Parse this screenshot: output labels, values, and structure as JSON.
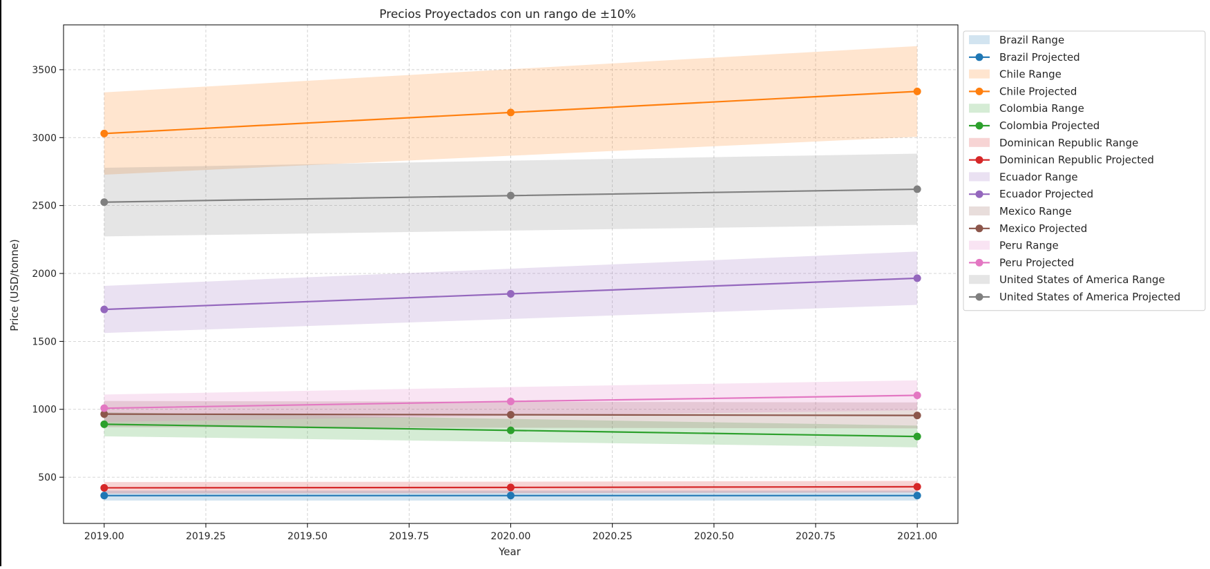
{
  "chart_data": {
    "type": "line",
    "title": "Precios Proyectados con un rango de ±10%",
    "xlabel": "Year",
    "ylabel": "Price (USD/tonne)",
    "xlim": [
      2018.9,
      2021.1
    ],
    "ylim": [
      160,
      3830
    ],
    "grid": true,
    "legend_position": "outside-right",
    "x": [
      2019.0,
      2020.0,
      2021.0
    ],
    "x_ticks": [
      2019.0,
      2019.25,
      2019.5,
      2019.75,
      2020.0,
      2020.25,
      2020.5,
      2020.75,
      2021.0
    ],
    "x_tick_labels": [
      "2019.00",
      "2019.25",
      "2019.50",
      "2019.75",
      "2020.00",
      "2020.25",
      "2020.50",
      "2020.75",
      "2021.00"
    ],
    "y_ticks": [
      500,
      1000,
      1500,
      2000,
      2500,
      3000,
      3500
    ],
    "y_tick_labels": [
      "500",
      "1000",
      "1500",
      "2000",
      "2500",
      "3000",
      "3500"
    ],
    "range_pct": 0.1,
    "series": [
      {
        "name": "Brazil",
        "range_label": "Brazil Range",
        "projected_label": "Brazil Projected",
        "color": "#1f77b4",
        "values": [
          365,
          365,
          365
        ]
      },
      {
        "name": "Chile",
        "range_label": "Chile Range",
        "projected_label": "Chile Projected",
        "color": "#ff7f0e",
        "values": [
          3030,
          3185,
          3340
        ]
      },
      {
        "name": "Colombia",
        "range_label": "Colombia Range",
        "projected_label": "Colombia Projected",
        "color": "#2ca02c",
        "values": [
          890,
          845,
          800
        ]
      },
      {
        "name": "Dominican Republic",
        "range_label": "Dominican Republic Range",
        "projected_label": "Dominican Republic Projected",
        "color": "#d62728",
        "values": [
          422,
          425,
          430
        ]
      },
      {
        "name": "Ecuador",
        "range_label": "Ecuador Range",
        "projected_label": "Ecuador Projected",
        "color": "#9467bd",
        "values": [
          1735,
          1850,
          1965
        ]
      },
      {
        "name": "Mexico",
        "range_label": "Mexico Range",
        "projected_label": "Mexico Projected",
        "color": "#8c564b",
        "values": [
          965,
          960,
          955
        ]
      },
      {
        "name": "Peru",
        "range_label": "Peru Range",
        "projected_label": "Peru Projected",
        "color": "#e377c2",
        "values": [
          1008,
          1058,
          1103
        ]
      },
      {
        "name": "United States of America",
        "range_label": "United States of America Range",
        "projected_label": "United States of America Projected",
        "color": "#7f7f7f",
        "values": [
          2525,
          2573,
          2620
        ]
      }
    ]
  }
}
